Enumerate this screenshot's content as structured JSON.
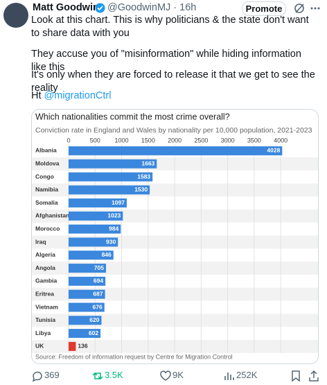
{
  "tweet": {
    "author": "Matt Goodwin",
    "handle": "@GoodwinMJ · 16h",
    "button": "Promote",
    "paragraphs": [
      "Look at this chart. This is why politicians & the state don't want to share data with you",
      "They accuse you of \"misinformation\" while hiding information like this",
      "It's only when they are forced to release it that we get to see the reality"
    ],
    "ht": "Ht",
    "mention": "@migrationCtrl"
  },
  "chart_data": {
    "type": "bar",
    "orientation": "horizontal",
    "title": "Which nationalities commit the most crime overall?",
    "subtitle": "Conviction rate in England and Wales by nationality per 10,000 population, 2021-2023",
    "source": "Source: Freedom of information request by Centre for Migration Control",
    "categories": [
      "Albania",
      "Moldova",
      "Congo",
      "Namibia",
      "Somalia",
      "Afghanistan",
      "Morocco",
      "Iraq",
      "Algeria",
      "Angola",
      "Gambia",
      "Eritrea",
      "Vietnam",
      "Tunisia",
      "Libya",
      "UK"
    ],
    "values": [
      4028,
      1663,
      1583,
      1530,
      1097,
      1023,
      984,
      930,
      846,
      705,
      694,
      687,
      676,
      620,
      602,
      136
    ],
    "colors": [
      "#3a87dd",
      "#3a87dd",
      "#3a87dd",
      "#3a87dd",
      "#3a87dd",
      "#3a87dd",
      "#3a87dd",
      "#3a87dd",
      "#3a87dd",
      "#3a87dd",
      "#3a87dd",
      "#3a87dd",
      "#3a87dd",
      "#3a87dd",
      "#3a87dd",
      "#e2382f"
    ],
    "xlim": [
      0,
      4050
    ],
    "xticks": [
      0,
      500,
      1000,
      1500,
      2000,
      2500,
      3000,
      3500,
      4000
    ],
    "grid": true
  },
  "stats": {
    "replies": "369",
    "reposts": "3.5K",
    "likes": "9K",
    "views": "252K"
  }
}
